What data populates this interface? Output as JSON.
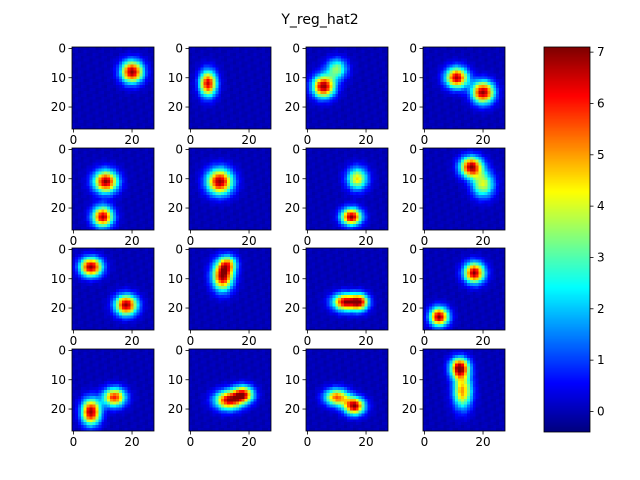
{
  "chart_data": {
    "type": "heatmap",
    "title": "Y_reg_hat2",
    "grid": false,
    "colormap": "jet",
    "image_size": 28,
    "vmin": -0.4,
    "vmax": 7.1,
    "xticks": [
      0,
      20
    ],
    "yticks": [
      0,
      10,
      20
    ],
    "colorbar_ticks": [
      0,
      1,
      2,
      3,
      4,
      5,
      6,
      7
    ],
    "panels": [
      {
        "blobs": [
          {
            "x": 20,
            "y": 8,
            "sx": 2.6,
            "sy": 2.6,
            "amp": 7.0
          }
        ]
      },
      {
        "blobs": [
          {
            "x": 6,
            "y": 12,
            "sx": 2.0,
            "sy": 3.0,
            "amp": 6.5
          }
        ]
      },
      {
        "blobs": [
          {
            "x": 5.5,
            "y": 13,
            "sx": 2.6,
            "sy": 2.6,
            "amp": 7.0
          },
          {
            "x": 10,
            "y": 7,
            "sx": 2.4,
            "sy": 2.4,
            "amp": 3.5
          }
        ]
      },
      {
        "blobs": [
          {
            "x": 11,
            "y": 10,
            "sx": 2.6,
            "sy": 2.4,
            "amp": 6.8
          },
          {
            "x": 20,
            "y": 15,
            "sx": 2.6,
            "sy": 2.6,
            "amp": 7.0
          }
        ]
      },
      {
        "blobs": [
          {
            "x": 11,
            "y": 11,
            "sx": 2.8,
            "sy": 2.6,
            "amp": 7.0
          },
          {
            "x": 10,
            "y": 23,
            "sx": 2.4,
            "sy": 2.4,
            "amp": 6.8
          }
        ]
      },
      {
        "blobs": [
          {
            "x": 10,
            "y": 11,
            "sx": 3.0,
            "sy": 3.0,
            "amp": 7.0
          }
        ]
      },
      {
        "blobs": [
          {
            "x": 17,
            "y": 10,
            "sx": 2.4,
            "sy": 2.6,
            "amp": 4.5
          },
          {
            "x": 15,
            "y": 23,
            "sx": 2.4,
            "sy": 2.0,
            "amp": 7.0
          }
        ]
      },
      {
        "blobs": [
          {
            "x": 16,
            "y": 6,
            "sx": 2.6,
            "sy": 2.4,
            "amp": 7.0
          },
          {
            "x": 20,
            "y": 12,
            "sx": 2.6,
            "sy": 3.0,
            "amp": 4.0
          }
        ]
      },
      {
        "blobs": [
          {
            "x": 6,
            "y": 6,
            "sx": 2.6,
            "sy": 2.2,
            "amp": 7.0
          },
          {
            "x": 18,
            "y": 19,
            "sx": 2.6,
            "sy": 2.4,
            "amp": 7.0
          }
        ]
      },
      {
        "blobs": [
          {
            "x": 11,
            "y": 9,
            "sx": 2.4,
            "sy": 3.4,
            "amp": 7.0
          },
          {
            "x": 13,
            "y": 5,
            "sx": 2.0,
            "sy": 2.0,
            "amp": 3.5
          }
        ]
      },
      {
        "blobs": [
          {
            "x": 13,
            "y": 18,
            "sx": 3.0,
            "sy": 2.0,
            "amp": 6.8
          },
          {
            "x": 18,
            "y": 18,
            "sx": 2.0,
            "sy": 2.0,
            "amp": 5.5
          }
        ]
      },
      {
        "blobs": [
          {
            "x": 17,
            "y": 8,
            "sx": 2.4,
            "sy": 2.4,
            "amp": 7.0
          },
          {
            "x": 5,
            "y": 23,
            "sx": 2.2,
            "sy": 2.2,
            "amp": 7.0
          }
        ]
      },
      {
        "blobs": [
          {
            "x": 6,
            "y": 21,
            "sx": 2.2,
            "sy": 3.0,
            "amp": 7.0
          },
          {
            "x": 14,
            "y": 16,
            "sx": 2.6,
            "sy": 2.2,
            "amp": 6.0
          }
        ]
      },
      {
        "blobs": [
          {
            "x": 13,
            "y": 17,
            "sx": 3.2,
            "sy": 2.2,
            "amp": 6.5
          },
          {
            "x": 18,
            "y": 15,
            "sx": 2.4,
            "sy": 2.0,
            "amp": 6.0
          }
        ]
      },
      {
        "blobs": [
          {
            "x": 10,
            "y": 16,
            "sx": 2.8,
            "sy": 2.0,
            "amp": 5.5
          },
          {
            "x": 16,
            "y": 19,
            "sx": 2.4,
            "sy": 2.0,
            "amp": 7.0
          }
        ]
      },
      {
        "blobs": [
          {
            "x": 12,
            "y": 6,
            "sx": 2.2,
            "sy": 2.4,
            "amp": 7.0
          },
          {
            "x": 13,
            "y": 14,
            "sx": 2.2,
            "sy": 4.0,
            "amp": 5.0
          }
        ]
      }
    ]
  }
}
